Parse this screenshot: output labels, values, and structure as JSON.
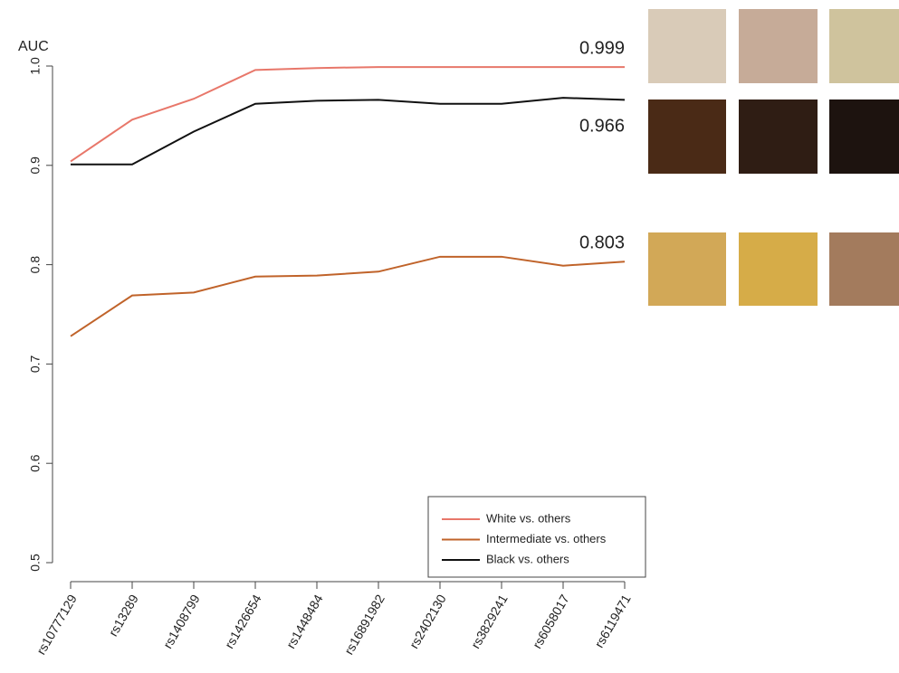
{
  "chart_data": {
    "type": "line",
    "y_label": "AUC",
    "categories": [
      "rs10777129",
      "rs13289",
      "rs1408799",
      "rs1426654",
      "rs1448484",
      "rs16891982",
      "rs2402130",
      "rs3829241",
      "rs6058017",
      "rs6119471"
    ],
    "series": [
      {
        "name": "White vs. others",
        "color": "#e8776a",
        "values": [
          0.904,
          0.946,
          0.967,
          0.996,
          0.998,
          0.999,
          0.999,
          0.999,
          0.999,
          0.999
        ]
      },
      {
        "name": "Intermediate vs. others",
        "color": "#c0632a",
        "values": [
          0.728,
          0.769,
          0.772,
          0.788,
          0.789,
          0.793,
          0.808,
          0.808,
          0.799,
          0.803
        ]
      },
      {
        "name": "Black vs. others",
        "color": "#111111",
        "values": [
          0.901,
          0.901,
          0.934,
          0.962,
          0.965,
          0.966,
          0.962,
          0.962,
          0.968,
          0.966
        ]
      }
    ],
    "ylim": [
      0.5,
      1.0
    ],
    "yticks": [
      0.5,
      0.6,
      0.7,
      0.8,
      0.9,
      {
        "value": 1.0,
        "label": "1.0"
      }
    ],
    "legend": "bottom-right"
  }
}
